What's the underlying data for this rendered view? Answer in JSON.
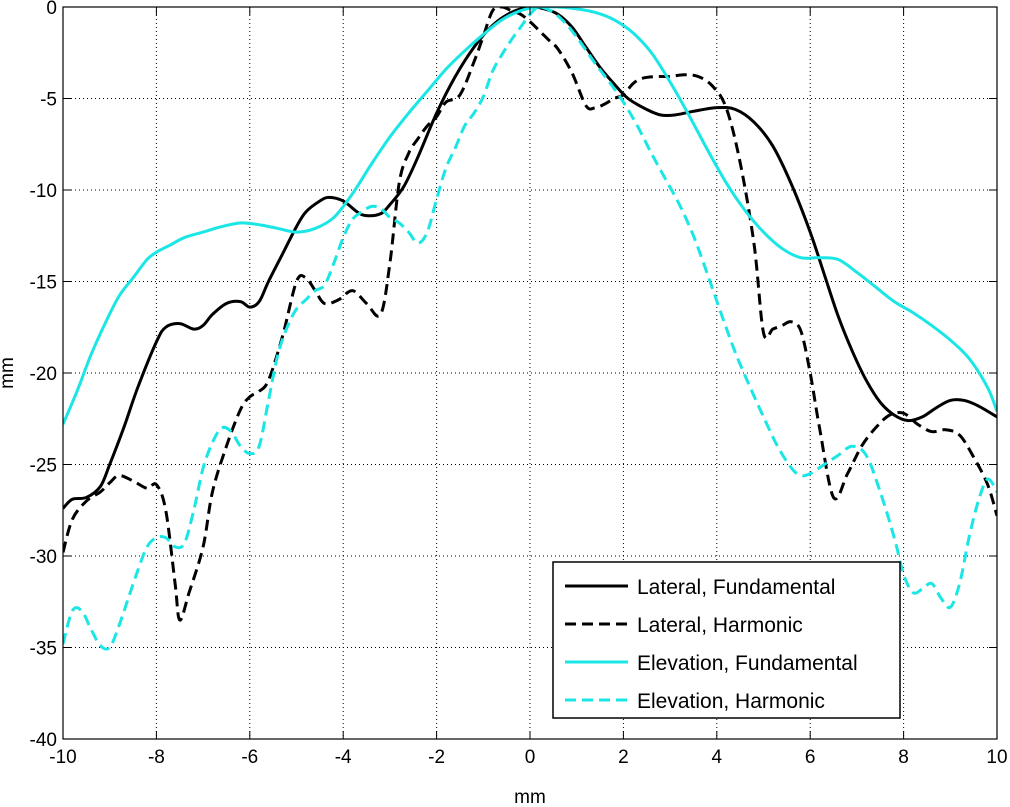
{
  "chart_data": {
    "type": "line",
    "title": "",
    "xlabel": "mm",
    "ylabel": "mm",
    "xlim": [
      -10,
      10
    ],
    "ylim": [
      -40,
      0
    ],
    "xticks": [
      -10,
      -8,
      -6,
      -4,
      -2,
      0,
      2,
      4,
      6,
      8,
      10
    ],
    "yticks": [
      0,
      -5,
      -10,
      -15,
      -20,
      -25,
      -30,
      -35,
      -40
    ],
    "grid": true,
    "legend": "bottom-right",
    "series": [
      {
        "name": "Lateral, Fundamental",
        "color": "#000000",
        "dash": "solid",
        "x": [
          -10,
          -9.8,
          -9.5,
          -9.2,
          -9,
          -8.7,
          -8.4,
          -8,
          -7.8,
          -7.5,
          -7.2,
          -7,
          -6.8,
          -6.5,
          -6.2,
          -6,
          -5.8,
          -5.6,
          -5.3,
          -5,
          -4.8,
          -4.5,
          -4.3,
          -4,
          -3.7,
          -3.5,
          -3.2,
          -3,
          -2.7,
          -2.4,
          -2,
          -1.6,
          -1.2,
          -0.8,
          -0.4,
          0,
          0.3,
          0.6,
          0.9,
          1.2,
          1.5,
          1.8,
          2.1,
          2.5,
          2.8,
          3.1,
          3.5,
          4,
          4.4,
          4.8,
          5.2,
          5.6,
          6,
          6.3,
          6.6,
          6.9,
          7.2,
          7.5,
          7.8,
          8.1,
          8.4,
          8.7,
          9,
          9.3,
          9.6,
          10
        ],
        "y": [
          -27.4,
          -26.9,
          -26.8,
          -26.2,
          -25,
          -23,
          -20.8,
          -18.3,
          -17.5,
          -17.3,
          -17.6,
          -17.4,
          -16.8,
          -16.2,
          -16.1,
          -16.4,
          -16.1,
          -15,
          -13.5,
          -12,
          -11.2,
          -10.6,
          -10.4,
          -10.6,
          -11.2,
          -11.4,
          -11.3,
          -10.8,
          -9.8,
          -8.2,
          -5.8,
          -3.8,
          -2.2,
          -1,
          -0.3,
          0,
          -0.1,
          -0.4,
          -1.1,
          -2.2,
          -3.3,
          -4.2,
          -5,
          -5.6,
          -5.9,
          -5.9,
          -5.7,
          -5.5,
          -5.6,
          -6.3,
          -7.6,
          -9.7,
          -12.3,
          -14.6,
          -16.9,
          -18.8,
          -20.4,
          -21.6,
          -22.3,
          -22.6,
          -22.4,
          -21.9,
          -21.5,
          -21.5,
          -21.8,
          -22.4
        ]
      },
      {
        "name": "Lateral, Harmonic",
        "color": "#000000",
        "dash": "dashed",
        "x": [
          -10,
          -9.8,
          -9.5,
          -9.2,
          -9,
          -8.8,
          -8.5,
          -8.2,
          -8,
          -7.8,
          -7.6,
          -7.5,
          -7.3,
          -7,
          -6.8,
          -6.5,
          -6.2,
          -6,
          -5.8,
          -5.6,
          -5.3,
          -5,
          -4.8,
          -4.6,
          -4.4,
          -4.1,
          -3.8,
          -3.5,
          -3.2,
          -3,
          -2.8,
          -2.6,
          -2.4,
          -2.2,
          -2,
          -1.8,
          -1.5,
          -1.2,
          -1,
          -0.8,
          -0.6,
          -0.4,
          -0.2,
          0,
          0.2,
          0.4,
          0.6,
          0.9,
          1.2,
          1.4,
          1.6,
          1.8,
          2,
          2.2,
          2.4,
          2.7,
          3,
          3.3,
          3.6,
          3.9,
          4.2,
          4.5,
          4.8,
          5,
          5.2,
          5.4,
          5.6,
          5.8,
          6,
          6.2,
          6.5,
          6.8,
          7.1,
          7.4,
          7.7,
          8,
          8.3,
          8.6,
          8.9,
          9.2,
          9.5,
          9.8,
          10
        ],
        "y": [
          -29.8,
          -28,
          -27,
          -26.5,
          -26,
          -25.6,
          -25.9,
          -26.3,
          -26.1,
          -27.5,
          -31.5,
          -33.5,
          -32,
          -29.5,
          -26.5,
          -24,
          -22,
          -21.3,
          -21,
          -20.4,
          -18,
          -15,
          -14.8,
          -15.5,
          -16.2,
          -16,
          -15.5,
          -16.2,
          -16.8,
          -14,
          -9.6,
          -8,
          -7.2,
          -6.5,
          -6,
          -5.2,
          -4.8,
          -3,
          -1.6,
          -0.2,
          0,
          -0.2,
          -0.4,
          -0.8,
          -1.3,
          -1.8,
          -2.3,
          -3.6,
          -5.4,
          -5.5,
          -5.3,
          -5,
          -4.8,
          -4.2,
          -3.9,
          -3.8,
          -3.8,
          -3.7,
          -3.8,
          -4.3,
          -5.5,
          -8.5,
          -13,
          -17.8,
          -17.6,
          -17.4,
          -17.2,
          -17.7,
          -20,
          -23,
          -26.8,
          -25.5,
          -24,
          -23,
          -22.3,
          -22.2,
          -22.8,
          -23.2,
          -23.1,
          -23.4,
          -24.6,
          -26.1,
          -27.8
        ]
      },
      {
        "name": "Elevation, Fundamental",
        "color": "#1ae6e6",
        "dash": "solid",
        "x": [
          -10,
          -9.7,
          -9.4,
          -9.1,
          -8.8,
          -8.5,
          -8.2,
          -8,
          -7.7,
          -7.4,
          -7,
          -6.6,
          -6.2,
          -5.8,
          -5.4,
          -5,
          -4.6,
          -4.2,
          -3.8,
          -3.4,
          -3,
          -2.6,
          -2.2,
          -1.8,
          -1.4,
          -1,
          -0.6,
          -0.2,
          0.2,
          0.6,
          1,
          1.4,
          1.8,
          2.2,
          2.6,
          3,
          3.4,
          3.8,
          4.2,
          4.6,
          5,
          5.4,
          5.8,
          6.2,
          6.6,
          7,
          7.4,
          7.8,
          8.2,
          8.6,
          9,
          9.4,
          9.8,
          10
        ],
        "y": [
          -22.8,
          -21,
          -19,
          -17.3,
          -15.8,
          -14.8,
          -13.8,
          -13.4,
          -13,
          -12.6,
          -12.3,
          -12,
          -11.8,
          -11.9,
          -12.1,
          -12.3,
          -12.1,
          -11.5,
          -10.2,
          -8.6,
          -7.1,
          -5.8,
          -4.6,
          -3.4,
          -2.4,
          -1.5,
          -0.7,
          -0.2,
          0,
          0,
          -0.1,
          -0.3,
          -0.7,
          -1.4,
          -2.5,
          -4.1,
          -5.9,
          -7.8,
          -9.6,
          -11.1,
          -12.3,
          -13.2,
          -13.7,
          -13.7,
          -13.8,
          -14.5,
          -15.3,
          -16.1,
          -16.7,
          -17.4,
          -18.2,
          -19.2,
          -20.8,
          -22.1
        ]
      },
      {
        "name": "Elevation, Harmonic",
        "color": "#1ae6e6",
        "dash": "dashed",
        "x": [
          -10,
          -9.8,
          -9.6,
          -9.4,
          -9.2,
          -9,
          -8.8,
          -8.6,
          -8.4,
          -8.2,
          -8,
          -7.8,
          -7.6,
          -7.4,
          -7.2,
          -7,
          -6.8,
          -6.6,
          -6.4,
          -6.2,
          -6,
          -5.8,
          -5.6,
          -5.4,
          -5.2,
          -5,
          -4.8,
          -4.6,
          -4.4,
          -4.2,
          -4,
          -3.8,
          -3.6,
          -3.4,
          -3.2,
          -3,
          -2.8,
          -2.6,
          -2.4,
          -2.2,
          -2,
          -1.8,
          -1.6,
          -1.4,
          -1.2,
          -1,
          -0.8,
          -0.6,
          -0.4,
          -0.2,
          0,
          0.2,
          0.5,
          0.8,
          1.1,
          1.4,
          1.7,
          2,
          2.3,
          2.6,
          2.9,
          3.2,
          3.5,
          3.8,
          4.1,
          4.4,
          4.7,
          5,
          5.3,
          5.6,
          5.8,
          6,
          6.3,
          6.6,
          6.9,
          7.2,
          7.5,
          7.8,
          8,
          8.2,
          8.4,
          8.6,
          8.8,
          9,
          9.2,
          9.4,
          9.6,
          9.8,
          10
        ],
        "y": [
          -34.8,
          -33,
          -33,
          -34,
          -34.9,
          -35,
          -33.8,
          -32.3,
          -30.8,
          -29.5,
          -29,
          -29,
          -29.5,
          -29.3,
          -27.5,
          -25.2,
          -23.8,
          -23,
          -23.2,
          -24,
          -24.4,
          -24,
          -21.5,
          -19,
          -17.5,
          -16.5,
          -16,
          -15.5,
          -15.2,
          -14,
          -12.6,
          -11.6,
          -11.2,
          -10.9,
          -11,
          -11.5,
          -11.8,
          -12.3,
          -12.9,
          -12.3,
          -10.5,
          -8.8,
          -7.7,
          -6.5,
          -5.8,
          -4.9,
          -3.5,
          -2.6,
          -1.8,
          -1.1,
          -0.4,
          0,
          -0.3,
          -1,
          -2,
          -3.1,
          -4.1,
          -5.2,
          -6.5,
          -8,
          -9.4,
          -10.8,
          -12.5,
          -14.6,
          -16.8,
          -18.9,
          -20.7,
          -22.4,
          -24,
          -25.2,
          -25.6,
          -25.5,
          -25,
          -24.5,
          -24,
          -24.5,
          -26.5,
          -29,
          -31,
          -32,
          -31.8,
          -31.5,
          -32.3,
          -32.8,
          -31.5,
          -29,
          -27,
          -25.8,
          -26.5
        ]
      }
    ]
  }
}
